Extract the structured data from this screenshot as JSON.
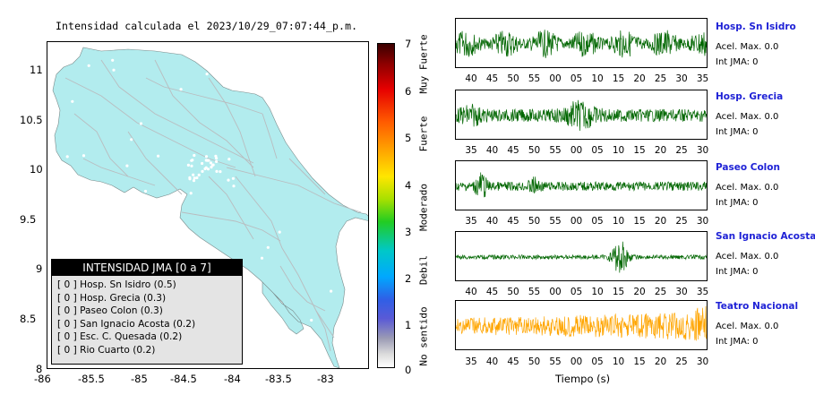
{
  "map": {
    "title": "Intensidad calculada el 2023/10/29_07:07:44_p.m.",
    "x_ticks": [
      "-86",
      "-85.5",
      "-85",
      "-84.5",
      "-84",
      "-83.5",
      "-83"
    ],
    "y_ticks": [
      "11",
      "10.5",
      "10",
      "9.5",
      "9",
      "8.5",
      "8"
    ],
    "land_color": "#b2ecee",
    "road_color": "#b9bcbf"
  },
  "legend": {
    "title": "INTENSIDAD JMA [0 a 7]",
    "items": [
      "[ 0 ]  Hosp. Sn Isidro (0.5)",
      "[ 0 ]  Hosp. Grecia (0.3)",
      "[ 0 ]  Paseo Colon (0.3)",
      "[ 0 ]  San Ignacio Acosta (0.2)",
      "[ 0 ]  Esc. C. Quesada (0.2)",
      "[ 0 ]  Rio Cuarto (0.2)"
    ]
  },
  "colorbar": {
    "numbers": [
      "7",
      "6",
      "5",
      "4",
      "3",
      "2",
      "1",
      "0"
    ],
    "categories": [
      "Muy Fuerte",
      "Fuerte",
      "Moderado",
      "Debil",
      "No sentido"
    ]
  },
  "stations": [
    {
      "name": "Hosp. Sn Isidro",
      "acel": "Acel. Max. 0.0",
      "int": "Int JMA: 0",
      "ticks": [
        "40",
        "45",
        "50",
        "55",
        "00",
        "05",
        "10",
        "15",
        "20",
        "25",
        "30",
        "35"
      ],
      "color": "#006600"
    },
    {
      "name": "Hosp. Grecia",
      "acel": "Acel. Max. 0.0",
      "int": "Int JMA: 0",
      "ticks": [
        "35",
        "40",
        "45",
        "50",
        "55",
        "00",
        "05",
        "10",
        "15",
        "20",
        "25",
        "30"
      ],
      "color": "#006600"
    },
    {
      "name": "Paseo Colon",
      "acel": "Acel. Max. 0.0",
      "int": "Int JMA: 0",
      "ticks": [
        "35",
        "40",
        "45",
        "50",
        "55",
        "00",
        "05",
        "10",
        "15",
        "20",
        "25",
        "30"
      ],
      "color": "#006600"
    },
    {
      "name": "San Ignacio Acosta",
      "acel": "Acel. Max. 0.0",
      "int": "Int JMA: 0",
      "ticks": [
        "40",
        "45",
        "50",
        "55",
        "00",
        "05",
        "10",
        "15",
        "20",
        "25",
        "30",
        "35"
      ],
      "color": "#006600"
    },
    {
      "name": "Teatro Nacional",
      "acel": "Acel. Max. 0.0",
      "int": "Int JMA: 0",
      "ticks": [
        "35",
        "40",
        "45",
        "50",
        "55",
        "00",
        "05",
        "10",
        "15",
        "20",
        "25",
        "30"
      ],
      "color": "#ffa500"
    }
  ],
  "time_axis_label": "Tiempo (s)"
}
